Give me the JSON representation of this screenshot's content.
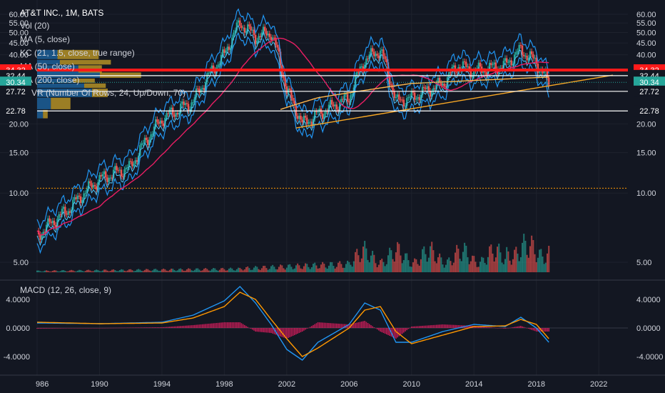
{
  "title": "AT&T INC., 1M, BATS",
  "indicators": [
    "Vol (20)",
    "MA (5, close)",
    "KC (21, 1.5, close, true range)",
    "MA (50, close)",
    "MA (200, close)",
    "VPVR (Number Of Rows, 24, Up/Down, 70)"
  ],
  "macd_label": "MACD (12, 26, close, 9)",
  "price_axis": {
    "ticks_top": [
      "60.00",
      "55.00",
      "50.00",
      "45.00",
      "40.00"
    ],
    "ticks_bottom": [
      "20.00",
      "15.00",
      "10.00",
      "5.00"
    ],
    "macd_ticks": [
      "4.0000",
      "0.0000",
      "-4.0000"
    ]
  },
  "levels": [
    {
      "label": "34.32",
      "color": "#ff1a1a",
      "type": "red"
    },
    {
      "label": "32.44",
      "color": "#ffffff",
      "type": "line"
    },
    {
      "label": "30.34",
      "color": "#26a69a",
      "type": "current"
    },
    {
      "label": "27.72",
      "color": "#ffffff",
      "type": "line"
    },
    {
      "label": "22.78",
      "color": "#ffffff",
      "type": "line"
    }
  ],
  "x_axis": [
    "986",
    "1990",
    "1994",
    "1998",
    "2002",
    "2006",
    "2010",
    "2014",
    "2018",
    "2022"
  ],
  "colors": {
    "up": "#26a69a",
    "down": "#ef5350",
    "kc": "#2196f3",
    "ma50": "#e91e63",
    "ma200": "#ffb74d",
    "trend": "#f9a825",
    "macd": "#2196f3",
    "signal": "#ff9800",
    "hist": "#e91e63"
  },
  "chart_data": {
    "type": "line",
    "title": "AT&T INC., 1M, BATS",
    "y_scale": "log",
    "ylim": [
      4,
      62
    ],
    "x": [
      1986,
      1988,
      1990,
      1992,
      1994,
      1996,
      1998,
      1999,
      2000,
      2001,
      2002,
      2003,
      2004,
      2006,
      2007,
      2008,
      2009,
      2010,
      2012,
      2013,
      2014,
      2016,
      2017,
      2018,
      2018.8
    ],
    "series": [
      {
        "values": [
          6.5,
          8.5,
          11.5,
          13,
          21,
          25,
          40,
          55,
          48,
          50,
          28,
          20,
          22,
          26,
          38,
          42,
          25,
          26,
          30,
          36,
          34,
          36,
          42,
          37,
          30.34
        ]
      }
    ],
    "volume_ylim": [
      0,
      18
    ],
    "macd": {
      "ylim": [
        -5.5,
        6
      ],
      "x": [
        1986,
        1990,
        1994,
        1996,
        1998,
        1999,
        2000,
        2001,
        2002,
        2003,
        2004,
        2006,
        2007,
        2008,
        2009,
        2010,
        2012,
        2014,
        2016,
        2017,
        2018,
        2018.8
      ],
      "macd": [
        0.7,
        0.6,
        0.8,
        1.8,
        3.8,
        5.8,
        3.5,
        0.5,
        -3,
        -4.5,
        -2,
        0.5,
        3.5,
        2.5,
        -2,
        -2,
        -0.5,
        0.5,
        0.2,
        1.5,
        0,
        -2
      ],
      "signal": [
        0.8,
        0.6,
        0.7,
        1.4,
        3,
        5,
        4,
        1.2,
        -1.5,
        -4,
        -2.8,
        0,
        2.5,
        3,
        -0.5,
        -2.2,
        -1,
        0.2,
        0.3,
        1.2,
        0.5,
        -1.5
      ]
    }
  }
}
